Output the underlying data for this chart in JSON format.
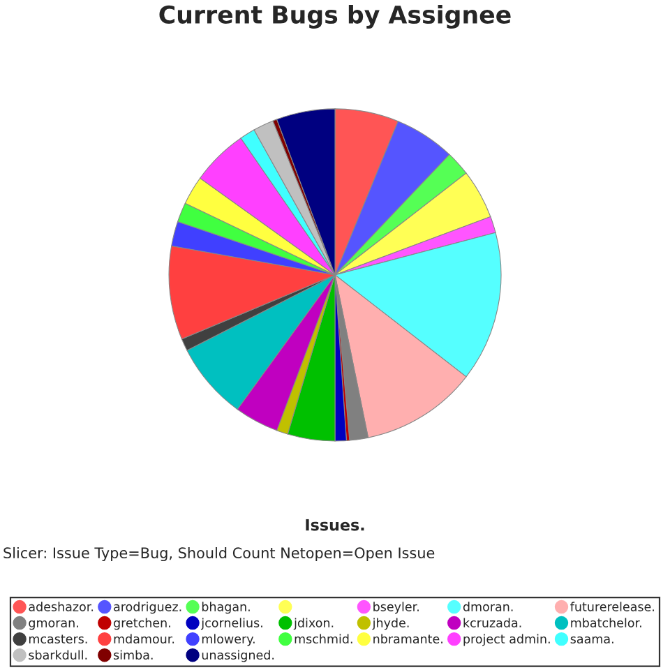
{
  "chart_data": {
    "type": "pie",
    "title": "Current Bugs by Assignee",
    "xlabel": "Issues.",
    "annotations": [
      "Slicer: Issue Type=Bug, Should Count Netopen=Open Issue"
    ],
    "categories": [
      "adeshazor.",
      "arodriguez.",
      "bhagan.",
      null,
      "bseyler.",
      "dmoran.",
      "futurerelease.",
      "gmoran.",
      "gretchen.",
      "jcornelius.",
      "jdixon.",
      "jhyde.",
      "kcruzada.",
      "mbatchelor.",
      "mcasters.",
      "mdamour.",
      "mlowery.",
      "mschmid.",
      "nbramante.",
      "project admin.",
      "saama.",
      "sbarkdull.",
      "simba.",
      "unassigned."
    ],
    "values": [
      6.2,
      5.9,
      2.4,
      4.8,
      1.6,
      14.6,
      11.3,
      1.8,
      0.3,
      1.1,
      4.6,
      1.1,
      4.3,
      7.5,
      1.2,
      9.1,
      2.4,
      1.9,
      2.8,
      5.5,
      1.5,
      2.0,
      0.4,
      5.7
    ],
    "colors": [
      "#ff5555",
      "#5555ff",
      "#55ff55",
      "#ffff55",
      "#ff55ff",
      "#55ffff",
      "#ffafaf",
      "#808080",
      "#c00000",
      "#0000c0",
      "#00c000",
      "#c0c000",
      "#c000c0",
      "#00c0c0",
      "#404040",
      "#ff4040",
      "#4040ff",
      "#40ff40",
      "#ffff40",
      "#ff40ff",
      "#40ffff",
      "#c0c0c0",
      "#800000",
      "#000080"
    ],
    "legend": "bottom"
  }
}
